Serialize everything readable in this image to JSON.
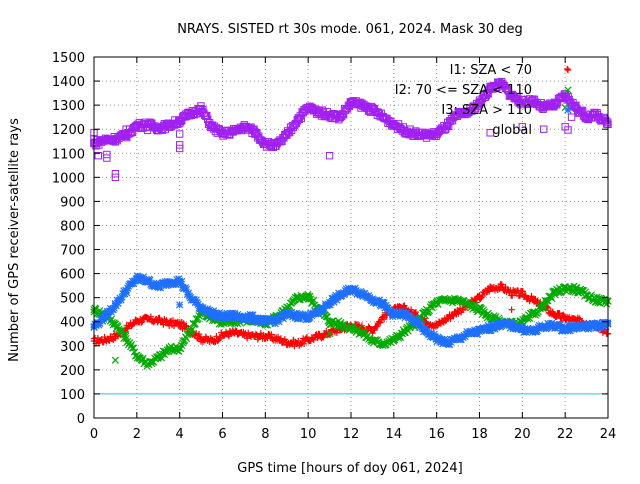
{
  "chart_data": {
    "type": "scatter",
    "title": "NRAYS. SISTED rt 30s mode. 061, 2024. Mask 30 deg",
    "xlabel": "GPS time [hours of doy 061, 2024]",
    "ylabel": "Number of GPS receiver-satellite rays",
    "xlim": [
      0,
      24
    ],
    "ylim": [
      0,
      1500
    ],
    "xticks": [
      0,
      2,
      4,
      6,
      8,
      10,
      12,
      14,
      16,
      18,
      20,
      22,
      24
    ],
    "yticks": [
      0,
      100,
      200,
      300,
      400,
      500,
      600,
      700,
      800,
      900,
      1000,
      1100,
      1200,
      1300,
      1400,
      1500
    ],
    "grid": true,
    "legend_position": "top-right",
    "reference_line": {
      "y": 100,
      "color": "#33cccc"
    },
    "series": [
      {
        "name": "I1: SZA < 70",
        "color": "#ff0000",
        "marker": "+",
        "points": [
          [
            0,
            320
          ],
          [
            0.5,
            325
          ],
          [
            1,
            340
          ],
          [
            1.5,
            370
          ],
          [
            2,
            405
          ],
          [
            2.5,
            410
          ],
          [
            3,
            405
          ],
          [
            3.5,
            395
          ],
          [
            4,
            390
          ],
          [
            4.5,
            365
          ],
          [
            5,
            330
          ],
          [
            5.5,
            320
          ],
          [
            6,
            345
          ],
          [
            6.5,
            355
          ],
          [
            7,
            345
          ],
          [
            7.5,
            340
          ],
          [
            8,
            340
          ],
          [
            8.5,
            330
          ],
          [
            9,
            315
          ],
          [
            9.5,
            310
          ],
          [
            10,
            325
          ],
          [
            10.5,
            340
          ],
          [
            11,
            355
          ],
          [
            11.5,
            370
          ],
          [
            12,
            385
          ],
          [
            12.5,
            375
          ],
          [
            13,
            365
          ],
          [
            13.5,
            420
          ],
          [
            14,
            450
          ],
          [
            14.5,
            455
          ],
          [
            15,
            430
          ],
          [
            15.5,
            400
          ],
          [
            16,
            385
          ],
          [
            16.5,
            415
          ],
          [
            17,
            445
          ],
          [
            17.5,
            470
          ],
          [
            18,
            500
          ],
          [
            18.5,
            540
          ],
          [
            19,
            545
          ],
          [
            19.5,
            520
          ],
          [
            20,
            515
          ],
          [
            20.5,
            490
          ],
          [
            21,
            460
          ],
          [
            21.5,
            430
          ],
          [
            22,
            415
          ],
          [
            22.5,
            405
          ],
          [
            23,
            395
          ],
          [
            23.5,
            385
          ],
          [
            24,
            350
          ]
        ],
        "outliers": [
          [
            19.5,
            450
          ],
          [
            22.1,
            1450
          ]
        ]
      },
      {
        "name": "I2: 70 <= SZA < 110",
        "color": "#00aa00",
        "marker": "x",
        "points": [
          [
            0,
            450
          ],
          [
            0.5,
            430
          ],
          [
            1,
            390
          ],
          [
            1.5,
            330
          ],
          [
            2,
            260
          ],
          [
            2.5,
            225
          ],
          [
            3,
            250
          ],
          [
            3.5,
            285
          ],
          [
            4,
            290
          ],
          [
            4.5,
            360
          ],
          [
            5,
            440
          ],
          [
            5.5,
            420
          ],
          [
            6,
            395
          ],
          [
            6.5,
            400
          ],
          [
            7,
            410
          ],
          [
            7.5,
            405
          ],
          [
            8,
            390
          ],
          [
            8.5,
            420
          ],
          [
            9,
            450
          ],
          [
            9.5,
            500
          ],
          [
            10,
            505
          ],
          [
            10.5,
            455
          ],
          [
            11,
            400
          ],
          [
            11.5,
            390
          ],
          [
            12,
            375
          ],
          [
            12.5,
            355
          ],
          [
            13,
            320
          ],
          [
            13.5,
            310
          ],
          [
            14,
            325
          ],
          [
            14.5,
            360
          ],
          [
            15,
            390
          ],
          [
            15.5,
            440
          ],
          [
            16,
            480
          ],
          [
            16.5,
            490
          ],
          [
            17,
            490
          ],
          [
            17.5,
            470
          ],
          [
            18,
            450
          ],
          [
            18.5,
            420
          ],
          [
            19,
            400
          ],
          [
            19.5,
            390
          ],
          [
            20,
            395
          ],
          [
            20.5,
            430
          ],
          [
            21,
            470
          ],
          [
            21.5,
            520
          ],
          [
            22,
            540
          ],
          [
            22.5,
            535
          ],
          [
            23,
            510
          ],
          [
            23.5,
            490
          ],
          [
            24,
            485
          ]
        ],
        "outliers": [
          [
            1,
            240
          ],
          [
            11,
            350
          ],
          [
            22,
            1290
          ]
        ]
      },
      {
        "name": "I3: SZA > 110",
        "color": "#1f6fff",
        "marker": "*",
        "points": [
          [
            0,
            380
          ],
          [
            0.5,
            420
          ],
          [
            1,
            470
          ],
          [
            1.5,
            530
          ],
          [
            2,
            580
          ],
          [
            2.5,
            570
          ],
          [
            3,
            545
          ],
          [
            3.5,
            565
          ],
          [
            4,
            570
          ],
          [
            4.5,
            500
          ],
          [
            5,
            460
          ],
          [
            5.5,
            435
          ],
          [
            6,
            420
          ],
          [
            6.5,
            425
          ],
          [
            7,
            420
          ],
          [
            7.5,
            415
          ],
          [
            8,
            400
          ],
          [
            8.5,
            405
          ],
          [
            9,
            430
          ],
          [
            9.5,
            425
          ],
          [
            10,
            420
          ],
          [
            10.5,
            440
          ],
          [
            11,
            480
          ],
          [
            11.5,
            510
          ],
          [
            12,
            535
          ],
          [
            12.5,
            520
          ],
          [
            13,
            495
          ],
          [
            13.5,
            470
          ],
          [
            14,
            430
          ],
          [
            14.5,
            430
          ],
          [
            15,
            400
          ],
          [
            15.5,
            360
          ],
          [
            16,
            330
          ],
          [
            16.5,
            310
          ],
          [
            17,
            330
          ],
          [
            17.5,
            350
          ],
          [
            18,
            360
          ],
          [
            18.5,
            375
          ],
          [
            19,
            390
          ],
          [
            19.5,
            385
          ],
          [
            20,
            370
          ],
          [
            20.5,
            360
          ],
          [
            21,
            380
          ],
          [
            21.5,
            385
          ],
          [
            22,
            370
          ],
          [
            22.5,
            380
          ],
          [
            23,
            380
          ],
          [
            23.5,
            385
          ],
          [
            24,
            390
          ]
        ],
        "outliers": [
          [
            4,
            470
          ]
        ]
      },
      {
        "name": "global",
        "color": "#a020f0",
        "marker": "square",
        "points": [
          [
            0,
            1140
          ],
          [
            0.5,
            1155
          ],
          [
            1,
            1160
          ],
          [
            1.5,
            1175
          ],
          [
            2,
            1215
          ],
          [
            2.5,
            1220
          ],
          [
            3,
            1205
          ],
          [
            3.5,
            1215
          ],
          [
            4,
            1235
          ],
          [
            4.5,
            1265
          ],
          [
            5,
            1285
          ],
          [
            5.5,
            1210
          ],
          [
            6,
            1180
          ],
          [
            6.5,
            1190
          ],
          [
            7,
            1210
          ],
          [
            7.5,
            1190
          ],
          [
            8,
            1140
          ],
          [
            8.5,
            1130
          ],
          [
            9,
            1175
          ],
          [
            9.5,
            1240
          ],
          [
            10,
            1290
          ],
          [
            10.5,
            1270
          ],
          [
            11,
            1260
          ],
          [
            11.5,
            1250
          ],
          [
            12,
            1310
          ],
          [
            12.5,
            1300
          ],
          [
            13,
            1280
          ],
          [
            13.5,
            1250
          ],
          [
            14,
            1220
          ],
          [
            14.5,
            1195
          ],
          [
            15,
            1180
          ],
          [
            15.5,
            1175
          ],
          [
            16,
            1180
          ],
          [
            16.5,
            1215
          ],
          [
            17,
            1260
          ],
          [
            17.5,
            1270
          ],
          [
            18,
            1310
          ],
          [
            18.5,
            1370
          ],
          [
            19,
            1390
          ],
          [
            19.5,
            1340
          ],
          [
            20,
            1310
          ],
          [
            20.5,
            1320
          ],
          [
            21,
            1290
          ],
          [
            21.5,
            1300
          ],
          [
            22,
            1340
          ],
          [
            22.5,
            1290
          ],
          [
            23,
            1250
          ],
          [
            23.5,
            1260
          ],
          [
            24,
            1220
          ]
        ],
        "outliers": [
          [
            0,
            1185
          ],
          [
            0,
            1160
          ],
          [
            0.2,
            1090
          ],
          [
            0.6,
            1080
          ],
          [
            0.6,
            1095
          ],
          [
            1,
            1000
          ],
          [
            1,
            1015
          ],
          [
            1.5,
            1200
          ],
          [
            2.5,
            1195
          ],
          [
            3,
            1195
          ],
          [
            4,
            1180
          ],
          [
            4,
            1120
          ],
          [
            4,
            1135
          ],
          [
            11,
            1090
          ],
          [
            18.5,
            1185
          ],
          [
            20,
            1210
          ],
          [
            21,
            1200
          ],
          [
            22,
            1210
          ],
          [
            22.3,
            1250
          ]
        ]
      }
    ]
  }
}
